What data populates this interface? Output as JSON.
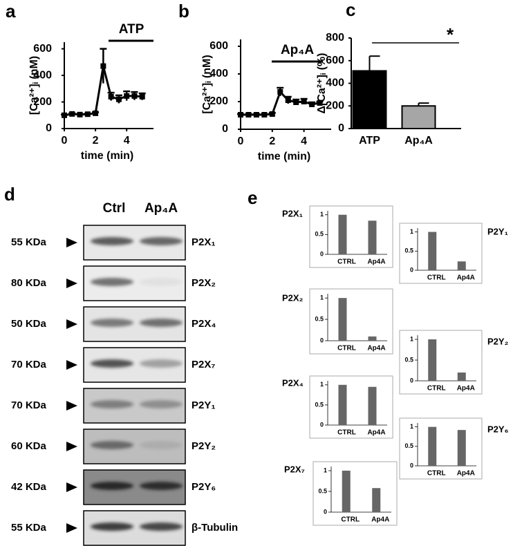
{
  "panel_labels": [
    "a",
    "b",
    "c",
    "d",
    "e"
  ],
  "blot": {
    "lanes": [
      "Ctrl",
      "Ap₄A"
    ],
    "rows": [
      {
        "size": "55 KDa",
        "protein": "P2X₁"
      },
      {
        "size": "80 KDa",
        "protein": "P2X₂"
      },
      {
        "size": "50 KDa",
        "protein": "P2X₄"
      },
      {
        "size": "70 KDa",
        "protein": "P2X₇"
      },
      {
        "size": "70 KDa",
        "protein": "P2Y₁"
      },
      {
        "size": "60 KDa",
        "protein": "P2Y₂"
      },
      {
        "size": "42 KDa",
        "protein": "P2Y₆"
      },
      {
        "size": "55 KDa",
        "protein": "β-Tubulin"
      }
    ]
  },
  "chart_data": [
    {
      "type": "line",
      "annotation": "ATP",
      "x_label": "time (min)",
      "y_label": "[Ca²⁺]ᵢ (nM)",
      "x": [
        0,
        0.5,
        1,
        1.5,
        2,
        2.5,
        3,
        3.5,
        4,
        4.5,
        5
      ],
      "values": [
        100,
        110,
        105,
        108,
        115,
        470,
        240,
        220,
        245,
        245,
        240
      ],
      "errors": [
        5,
        5,
        5,
        5,
        8,
        130,
        30,
        30,
        35,
        30,
        25
      ],
      "color": "#000000",
      "xlim": [
        0,
        5.5
      ],
      "xticks": [
        0,
        2,
        4
      ],
      "ylim": [
        0,
        650
      ],
      "yticks": [
        0,
        200,
        400,
        600
      ]
    },
    {
      "type": "line",
      "annotation": "Ap₄A",
      "x_label": "time (min)",
      "y_label": "[Ca²⁺]ᵢ (nM)",
      "x": [
        0,
        0.5,
        1,
        1.5,
        2,
        2.5,
        3,
        3.5,
        4,
        4.5,
        5
      ],
      "values": [
        105,
        105,
        105,
        105,
        110,
        270,
        210,
        195,
        200,
        180,
        190
      ],
      "errors": [
        5,
        5,
        5,
        5,
        8,
        30,
        25,
        20,
        20,
        15,
        10
      ],
      "color": "#000000",
      "xlim": [
        0,
        5.5
      ],
      "xticks": [
        0,
        2,
        4
      ],
      "ylim": [
        0,
        650
      ],
      "yticks": [
        0,
        200,
        400,
        600
      ]
    },
    {
      "type": "bar",
      "annotation": "*",
      "y_label": "Δ[Ca²⁺]ᵢ (%)",
      "categories": [
        "ATP",
        "Ap₄A"
      ],
      "values": [
        510,
        200
      ],
      "errors": [
        130,
        25
      ],
      "colors": [
        "#000000",
        "#a6a6a6"
      ],
      "ylim": [
        0,
        800
      ],
      "yticks": [
        0,
        200,
        400,
        600,
        800
      ]
    },
    {
      "type": "minibar",
      "title": "P2X₁",
      "categories": [
        "CTRL",
        "Ap4A"
      ],
      "values": [
        1,
        0.85
      ],
      "color": "#666666",
      "ylim": [
        0,
        1.1
      ],
      "yticks": [
        0,
        0.5,
        1
      ]
    },
    {
      "type": "minibar",
      "title": "P2X₂",
      "categories": [
        "CTRL",
        "Ap4A"
      ],
      "values": [
        1,
        0.1
      ],
      "color": "#666666",
      "ylim": [
        0,
        1.1
      ],
      "yticks": [
        0,
        0.5,
        1
      ]
    },
    {
      "type": "minibar",
      "title": "P2X₄",
      "categories": [
        "CTRL",
        "Ap4A"
      ],
      "values": [
        1,
        0.95
      ],
      "color": "#666666",
      "ylim": [
        0,
        1.1
      ],
      "yticks": [
        0,
        0.5,
        1
      ]
    },
    {
      "type": "minibar",
      "title": "P2X₇",
      "categories": [
        "CTRL",
        "Ap4A"
      ],
      "values": [
        1,
        0.58
      ],
      "color": "#666666",
      "ylim": [
        0,
        1.1
      ],
      "yticks": [
        0,
        0.5,
        1
      ]
    },
    {
      "type": "minibar",
      "title": "P2Y₁",
      "categories": [
        "CTRL",
        "Ap4A"
      ],
      "values": [
        1,
        0.23
      ],
      "color": "#666666",
      "ylim": [
        0,
        1.1
      ],
      "yticks": [
        0,
        0.5,
        1
      ]
    },
    {
      "type": "minibar",
      "title": "P2Y₂",
      "categories": [
        "CTRL",
        "Ap4A"
      ],
      "values": [
        1,
        0.2
      ],
      "color": "#666666",
      "ylim": [
        0,
        1.1
      ],
      "yticks": [
        0,
        0.5,
        1
      ]
    },
    {
      "type": "minibar",
      "title": "P2Y₆",
      "categories": [
        "CTRL",
        "Ap4A"
      ],
      "values": [
        1,
        0.92
      ],
      "color": "#666666",
      "ylim": [
        0,
        1.1
      ],
      "yticks": [
        0,
        0.5,
        1
      ]
    }
  ]
}
